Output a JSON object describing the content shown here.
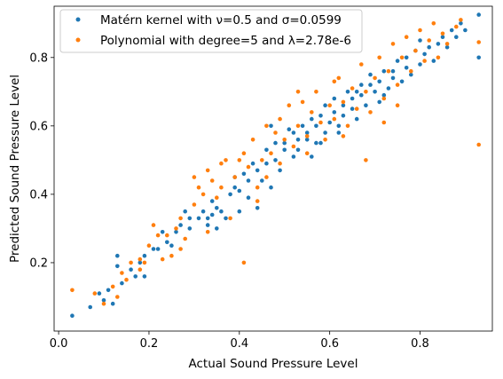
{
  "chart_data": {
    "type": "scatter",
    "xlabel": "Actual Sound Pressure Level",
    "ylabel": "Predicted Sound Pressure Level",
    "xlim": [
      -0.01,
      0.96
    ],
    "ylim": [
      0.0,
      0.95
    ],
    "xticks": [
      0.0,
      0.2,
      0.4,
      0.6,
      0.8
    ],
    "yticks": [
      0.2,
      0.4,
      0.6,
      0.8
    ],
    "xtick_labels": [
      "0.0",
      "0.2",
      "0.4",
      "0.6",
      "0.8"
    ],
    "ytick_labels": [
      "0.2",
      "0.4",
      "0.6",
      "0.8"
    ],
    "grid": false,
    "legend_position": "upper-left",
    "series": [
      {
        "name": "Matérn kernel with ν=0.5 and σ=0.0599",
        "color": "#1f77b4",
        "points": [
          [
            0.03,
            0.045
          ],
          [
            0.07,
            0.07
          ],
          [
            0.09,
            0.11
          ],
          [
            0.1,
            0.09
          ],
          [
            0.11,
            0.12
          ],
          [
            0.12,
            0.08
          ],
          [
            0.13,
            0.22
          ],
          [
            0.13,
            0.19
          ],
          [
            0.14,
            0.14
          ],
          [
            0.16,
            0.18
          ],
          [
            0.17,
            0.16
          ],
          [
            0.18,
            0.2
          ],
          [
            0.19,
            0.22
          ],
          [
            0.19,
            0.16
          ],
          [
            0.21,
            0.24
          ],
          [
            0.22,
            0.24
          ],
          [
            0.23,
            0.29
          ],
          [
            0.24,
            0.26
          ],
          [
            0.25,
            0.25
          ],
          [
            0.26,
            0.29
          ],
          [
            0.27,
            0.31
          ],
          [
            0.28,
            0.35
          ],
          [
            0.29,
            0.3
          ],
          [
            0.31,
            0.33
          ],
          [
            0.32,
            0.35
          ],
          [
            0.33,
            0.33
          ],
          [
            0.33,
            0.31
          ],
          [
            0.34,
            0.34
          ],
          [
            0.34,
            0.38
          ],
          [
            0.35,
            0.36
          ],
          [
            0.36,
            0.35
          ],
          [
            0.37,
            0.33
          ],
          [
            0.38,
            0.4
          ],
          [
            0.39,
            0.42
          ],
          [
            0.39,
            0.45
          ],
          [
            0.4,
            0.41
          ],
          [
            0.41,
            0.46
          ],
          [
            0.42,
            0.44
          ],
          [
            0.42,
            0.39
          ],
          [
            0.43,
            0.49
          ],
          [
            0.44,
            0.47
          ],
          [
            0.45,
            0.44
          ],
          [
            0.46,
            0.49
          ],
          [
            0.46,
            0.53
          ],
          [
            0.47,
            0.42
          ],
          [
            0.48,
            0.55
          ],
          [
            0.48,
            0.5
          ],
          [
            0.49,
            0.47
          ],
          [
            0.5,
            0.53
          ],
          [
            0.5,
            0.55
          ],
          [
            0.51,
            0.59
          ],
          [
            0.52,
            0.51
          ],
          [
            0.53,
            0.56
          ],
          [
            0.53,
            0.53
          ],
          [
            0.54,
            0.6
          ],
          [
            0.55,
            0.56
          ],
          [
            0.55,
            0.58
          ],
          [
            0.56,
            0.62
          ],
          [
            0.57,
            0.55
          ],
          [
            0.57,
            0.6
          ],
          [
            0.58,
            0.63
          ],
          [
            0.59,
            0.58
          ],
          [
            0.59,
            0.66
          ],
          [
            0.6,
            0.61
          ],
          [
            0.61,
            0.64
          ],
          [
            0.61,
            0.68
          ],
          [
            0.62,
            0.6
          ],
          [
            0.63,
            0.66
          ],
          [
            0.63,
            0.63
          ],
          [
            0.64,
            0.7
          ],
          [
            0.65,
            0.65
          ],
          [
            0.65,
            0.68
          ],
          [
            0.66,
            0.62
          ],
          [
            0.67,
            0.72
          ],
          [
            0.67,
            0.69
          ],
          [
            0.68,
            0.66
          ],
          [
            0.69,
            0.72
          ],
          [
            0.69,
            0.75
          ],
          [
            0.7,
            0.7
          ],
          [
            0.71,
            0.67
          ],
          [
            0.71,
            0.73
          ],
          [
            0.72,
            0.76
          ],
          [
            0.73,
            0.71
          ],
          [
            0.74,
            0.76
          ],
          [
            0.74,
            0.74
          ],
          [
            0.75,
            0.79
          ],
          [
            0.76,
            0.73
          ],
          [
            0.77,
            0.77
          ],
          [
            0.77,
            0.8
          ],
          [
            0.78,
            0.75
          ],
          [
            0.79,
            0.82
          ],
          [
            0.8,
            0.78
          ],
          [
            0.81,
            0.81
          ],
          [
            0.82,
            0.83
          ],
          [
            0.83,
            0.79
          ],
          [
            0.84,
            0.84
          ],
          [
            0.85,
            0.86
          ],
          [
            0.86,
            0.83
          ],
          [
            0.87,
            0.88
          ],
          [
            0.88,
            0.86
          ],
          [
            0.89,
            0.9
          ],
          [
            0.9,
            0.88
          ],
          [
            0.93,
            0.925
          ],
          [
            0.93,
            0.8
          ],
          [
            0.47,
            0.6
          ],
          [
            0.58,
            0.55
          ],
          [
            0.35,
            0.3
          ],
          [
            0.29,
            0.33
          ],
          [
            0.44,
            0.36
          ],
          [
            0.62,
            0.58
          ],
          [
            0.66,
            0.7
          ],
          [
            0.72,
            0.69
          ],
          [
            0.4,
            0.35
          ],
          [
            0.52,
            0.58
          ],
          [
            0.56,
            0.51
          ],
          [
            0.8,
            0.85
          ]
        ]
      },
      {
        "name": "Polynomial with degree=5 and λ=2.78e-6",
        "color": "#ff7f0e",
        "points": [
          [
            0.03,
            0.12
          ],
          [
            0.08,
            0.11
          ],
          [
            0.1,
            0.08
          ],
          [
            0.12,
            0.13
          ],
          [
            0.13,
            0.1
          ],
          [
            0.14,
            0.17
          ],
          [
            0.15,
            0.15
          ],
          [
            0.16,
            0.2
          ],
          [
            0.18,
            0.21
          ],
          [
            0.18,
            0.18
          ],
          [
            0.2,
            0.25
          ],
          [
            0.21,
            0.31
          ],
          [
            0.23,
            0.21
          ],
          [
            0.24,
            0.28
          ],
          [
            0.25,
            0.22
          ],
          [
            0.26,
            0.3
          ],
          [
            0.27,
            0.33
          ],
          [
            0.28,
            0.27
          ],
          [
            0.3,
            0.37
          ],
          [
            0.31,
            0.42
          ],
          [
            0.32,
            0.4
          ],
          [
            0.33,
            0.47
          ],
          [
            0.33,
            0.29
          ],
          [
            0.34,
            0.44
          ],
          [
            0.35,
            0.39
          ],
          [
            0.36,
            0.42
          ],
          [
            0.37,
            0.5
          ],
          [
            0.38,
            0.33
          ],
          [
            0.39,
            0.45
          ],
          [
            0.4,
            0.5
          ],
          [
            0.41,
            0.2
          ],
          [
            0.41,
            0.52
          ],
          [
            0.42,
            0.48
          ],
          [
            0.43,
            0.56
          ],
          [
            0.44,
            0.42
          ],
          [
            0.45,
            0.5
          ],
          [
            0.46,
            0.6
          ],
          [
            0.46,
            0.45
          ],
          [
            0.47,
            0.52
          ],
          [
            0.48,
            0.58
          ],
          [
            0.49,
            0.62
          ],
          [
            0.5,
            0.56
          ],
          [
            0.51,
            0.66
          ],
          [
            0.52,
            0.54
          ],
          [
            0.53,
            0.6
          ],
          [
            0.54,
            0.67
          ],
          [
            0.55,
            0.57
          ],
          [
            0.56,
            0.64
          ],
          [
            0.57,
            0.7
          ],
          [
            0.58,
            0.61
          ],
          [
            0.59,
            0.56
          ],
          [
            0.6,
            0.66
          ],
          [
            0.61,
            0.62
          ],
          [
            0.62,
            0.74
          ],
          [
            0.63,
            0.67
          ],
          [
            0.64,
            0.6
          ],
          [
            0.65,
            0.71
          ],
          [
            0.66,
            0.65
          ],
          [
            0.67,
            0.78
          ],
          [
            0.68,
            0.7
          ],
          [
            0.69,
            0.64
          ],
          [
            0.7,
            0.74
          ],
          [
            0.71,
            0.8
          ],
          [
            0.72,
            0.68
          ],
          [
            0.73,
            0.76
          ],
          [
            0.74,
            0.84
          ],
          [
            0.75,
            0.72
          ],
          [
            0.76,
            0.8
          ],
          [
            0.77,
            0.86
          ],
          [
            0.78,
            0.76
          ],
          [
            0.79,
            0.82
          ],
          [
            0.8,
            0.88
          ],
          [
            0.81,
            0.79
          ],
          [
            0.82,
            0.85
          ],
          [
            0.83,
            0.9
          ],
          [
            0.84,
            0.8
          ],
          [
            0.85,
            0.87
          ],
          [
            0.86,
            0.84
          ],
          [
            0.88,
            0.89
          ],
          [
            0.89,
            0.91
          ],
          [
            0.93,
            0.545
          ],
          [
            0.93,
            0.845
          ],
          [
            0.36,
            0.49
          ],
          [
            0.3,
            0.45
          ],
          [
            0.49,
            0.49
          ],
          [
            0.55,
            0.52
          ],
          [
            0.63,
            0.57
          ],
          [
            0.72,
            0.61
          ],
          [
            0.68,
            0.5
          ],
          [
            0.27,
            0.24
          ],
          [
            0.22,
            0.28
          ],
          [
            0.19,
            0.2
          ],
          [
            0.44,
            0.38
          ],
          [
            0.53,
            0.7
          ],
          [
            0.61,
            0.73
          ],
          [
            0.75,
            0.66
          ]
        ]
      }
    ]
  }
}
